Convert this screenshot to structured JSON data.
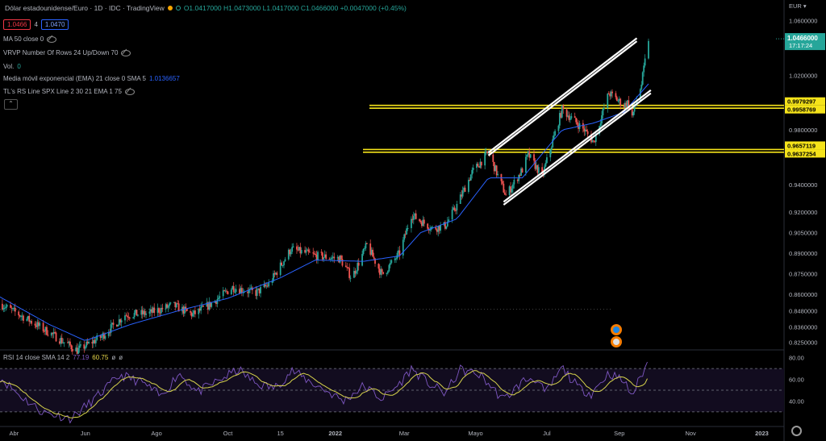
{
  "header": {
    "symbol": "Dólar estadounidense/Euro · 1D · IDC · TradingView",
    "ohlc": "O1.0417000 H1.0473000 L1.0417000 C1.0466000 +0.0047000 (+0.45%)",
    "sell_price": "1.0466",
    "spread": "4",
    "buy_price": "1.0470"
  },
  "indicators": {
    "ma": "MA 50 close 0",
    "vrvp": "VRVP Number Of Rows 24 Up/Down 70",
    "vol_label": "Vol.",
    "vol_value": "0",
    "ema_label": "Media móvil exponencial (EMA) 21 close 0 SMA 5",
    "ema_value": "1.0136657",
    "rs": "TL's RS Line SPX Line 2 30 21 EMA 1 75"
  },
  "rsi": {
    "label": "RSI 14 close SMA 14 2",
    "value1": "77.19",
    "value2": "60.75",
    "value3": "ø",
    "value4": "ø"
  },
  "colors": {
    "up": "#26a69a",
    "down": "#ef5350",
    "ema": "#2962ff",
    "channel": "#ffffff",
    "zone": "#f5e31a",
    "rsi_line": "#7e57c2",
    "rsi_ma": "#d7d34c",
    "current_price": "#26a69a"
  },
  "chart_data": {
    "type": "candlestick",
    "currency": "EUR",
    "ylim": [
      0.8205,
      1.0655
    ],
    "y_ticks": [
      "1.0600000",
      "1.0200000",
      "0.9800000",
      "0.9400000",
      "0.9200000",
      "0.9050000",
      "0.8900000",
      "0.8750000",
      "0.8600000",
      "0.8480000",
      "0.8360000",
      "0.8250000"
    ],
    "y_tick_values": [
      1.06,
      1.02,
      0.98,
      0.94,
      0.92,
      0.905,
      0.89,
      0.875,
      0.86,
      0.848,
      0.836,
      0.825
    ],
    "x_ticks": [
      "Abr",
      "Jun",
      "Ago",
      "Oct",
      "15",
      "2022",
      "Mar",
      "Mayo",
      "Jul",
      "Sep",
      "Nov",
      "2023"
    ],
    "x_tick_dates": [
      "2021-04-01",
      "2021-06-01",
      "2021-08-01",
      "2021-10-01",
      "2021-11-15",
      "2022-01-01",
      "2022-03-01",
      "2022-05-01",
      "2022-07-01",
      "2022-09-01",
      "2022-11-01",
      "2023-01-01"
    ],
    "date_range": [
      "2021-03-20",
      "2023-01-20"
    ],
    "last_date": "2022-09-26",
    "current_price": {
      "value": 1.0466,
      "label": "1.0466000",
      "countdown": "17:17:24"
    },
    "price_labels": [
      {
        "value": 0.9979297,
        "label": "0.9979297"
      },
      {
        "value": 0.9958769,
        "label": "0.9958769"
      },
      {
        "value": 0.9657119,
        "label": "0.9657119"
      },
      {
        "value": 0.9637254,
        "label": "0.9637254"
      }
    ],
    "horizontal_zones": [
      [
        0.9958769,
        0.9979297
      ],
      [
        0.9637254,
        0.9657119
      ]
    ],
    "dotted_level": 0.849,
    "channel_lines": [
      {
        "from": [
          "2022-05-12",
          0.9635
        ],
        "to": [
          "2022-09-16",
          1.047
        ]
      },
      {
        "from": [
          "2022-05-12",
          0.9613
        ],
        "to": [
          "2022-09-16",
          1.0448
        ]
      },
      {
        "from": [
          "2022-05-25",
          0.9275
        ],
        "to": [
          "2022-09-28",
          1.009
        ]
      },
      {
        "from": [
          "2022-05-25",
          0.9253
        ],
        "to": [
          "2022-09-28",
          1.0068
        ]
      }
    ],
    "anchors": [
      [
        "2021-03-20",
        0.853
      ],
      [
        "2021-04-10",
        0.843
      ],
      [
        "2021-05-01",
        0.832
      ],
      [
        "2021-05-25",
        0.819
      ],
      [
        "2021-06-15",
        0.829
      ],
      [
        "2021-07-05",
        0.845
      ],
      [
        "2021-07-25",
        0.846
      ],
      [
        "2021-08-15",
        0.852
      ],
      [
        "2021-09-01",
        0.845
      ],
      [
        "2021-09-15",
        0.852
      ],
      [
        "2021-10-05",
        0.865
      ],
      [
        "2021-10-25",
        0.861
      ],
      [
        "2021-11-05",
        0.867
      ],
      [
        "2021-11-24",
        0.893
      ],
      [
        "2021-12-15",
        0.888
      ],
      [
        "2022-01-05",
        0.886
      ],
      [
        "2022-01-15",
        0.872
      ],
      [
        "2022-01-28",
        0.896
      ],
      [
        "2022-02-10",
        0.874
      ],
      [
        "2022-02-25",
        0.89
      ],
      [
        "2022-03-07",
        0.918
      ],
      [
        "2022-03-25",
        0.908
      ],
      [
        "2022-04-05",
        0.91
      ],
      [
        "2022-04-15",
        0.925
      ],
      [
        "2022-04-28",
        0.949
      ],
      [
        "2022-05-12",
        0.9635
      ],
      [
        "2022-05-27",
        0.932
      ],
      [
        "2022-06-10",
        0.951
      ],
      [
        "2022-06-15",
        0.962
      ],
      [
        "2022-06-27",
        0.946
      ],
      [
        "2022-07-14",
        0.995
      ],
      [
        "2022-08-02",
        0.98
      ],
      [
        "2022-08-10",
        0.971
      ],
      [
        "2022-08-23",
        1.007
      ],
      [
        "2022-09-05",
        0.998
      ],
      [
        "2022-09-08",
        1.0
      ],
      [
        "2022-09-12",
        0.99
      ],
      [
        "2022-09-20",
        1.0135
      ],
      [
        "2022-09-26",
        1.0466
      ]
    ],
    "ema_anchors": [
      [
        "2021-03-20",
        0.858
      ],
      [
        "2021-05-01",
        0.838
      ],
      [
        "2021-06-01",
        0.826
      ],
      [
        "2021-07-10",
        0.838
      ],
      [
        "2021-08-20",
        0.848
      ],
      [
        "2021-10-01",
        0.857
      ],
      [
        "2021-11-15",
        0.872
      ],
      [
        "2021-12-15",
        0.885
      ],
      [
        "2022-01-25",
        0.884
      ],
      [
        "2022-02-25",
        0.888
      ],
      [
        "2022-03-15",
        0.905
      ],
      [
        "2022-04-15",
        0.915
      ],
      [
        "2022-05-12",
        0.945
      ],
      [
        "2022-06-10",
        0.945
      ],
      [
        "2022-07-14",
        0.98
      ],
      [
        "2022-08-10",
        0.985
      ],
      [
        "2022-09-05",
        0.993
      ],
      [
        "2022-09-26",
        1.0137
      ]
    ],
    "rsi_panel": {
      "ylim": [
        18,
        85
      ],
      "y_ticks": [
        "80.00",
        "60.00",
        "40.00"
      ],
      "y_tick_values": [
        80,
        60,
        40
      ],
      "levels": [
        70,
        50,
        30
      ],
      "last_rsi": 77.19,
      "last_rsi_ma": 60.75,
      "rsi_anchors": [
        [
          "2021-03-20",
          62
        ],
        [
          "2021-04-05",
          46
        ],
        [
          "2021-04-25",
          30
        ],
        [
          "2021-05-20",
          24
        ],
        [
          "2021-06-10",
          43
        ],
        [
          "2021-07-01",
          64
        ],
        [
          "2021-07-20",
          57
        ],
        [
          "2021-08-05",
          44
        ],
        [
          "2021-08-20",
          66
        ],
        [
          "2021-09-05",
          48
        ],
        [
          "2021-09-25",
          60
        ],
        [
          "2021-10-10",
          69
        ],
        [
          "2021-10-25",
          56
        ],
        [
          "2021-11-10",
          52
        ],
        [
          "2021-11-25",
          68
        ],
        [
          "2021-12-10",
          58
        ],
        [
          "2021-12-25",
          49
        ],
        [
          "2022-01-08",
          40
        ],
        [
          "2022-01-25",
          54
        ],
        [
          "2022-02-10",
          42
        ],
        [
          "2022-02-25",
          56
        ],
        [
          "2022-03-07",
          70
        ],
        [
          "2022-03-22",
          56
        ],
        [
          "2022-04-05",
          47
        ],
        [
          "2022-04-18",
          69
        ],
        [
          "2022-05-05",
          64
        ],
        [
          "2022-05-25",
          41
        ],
        [
          "2022-06-10",
          58
        ],
        [
          "2022-06-20",
          62
        ],
        [
          "2022-06-30",
          47
        ],
        [
          "2022-07-14",
          71
        ],
        [
          "2022-07-28",
          52
        ],
        [
          "2022-08-08",
          47
        ],
        [
          "2022-08-23",
          66
        ],
        [
          "2022-09-05",
          58
        ],
        [
          "2022-09-12",
          45
        ],
        [
          "2022-09-20",
          64
        ],
        [
          "2022-09-26",
          77.19
        ]
      ]
    }
  }
}
